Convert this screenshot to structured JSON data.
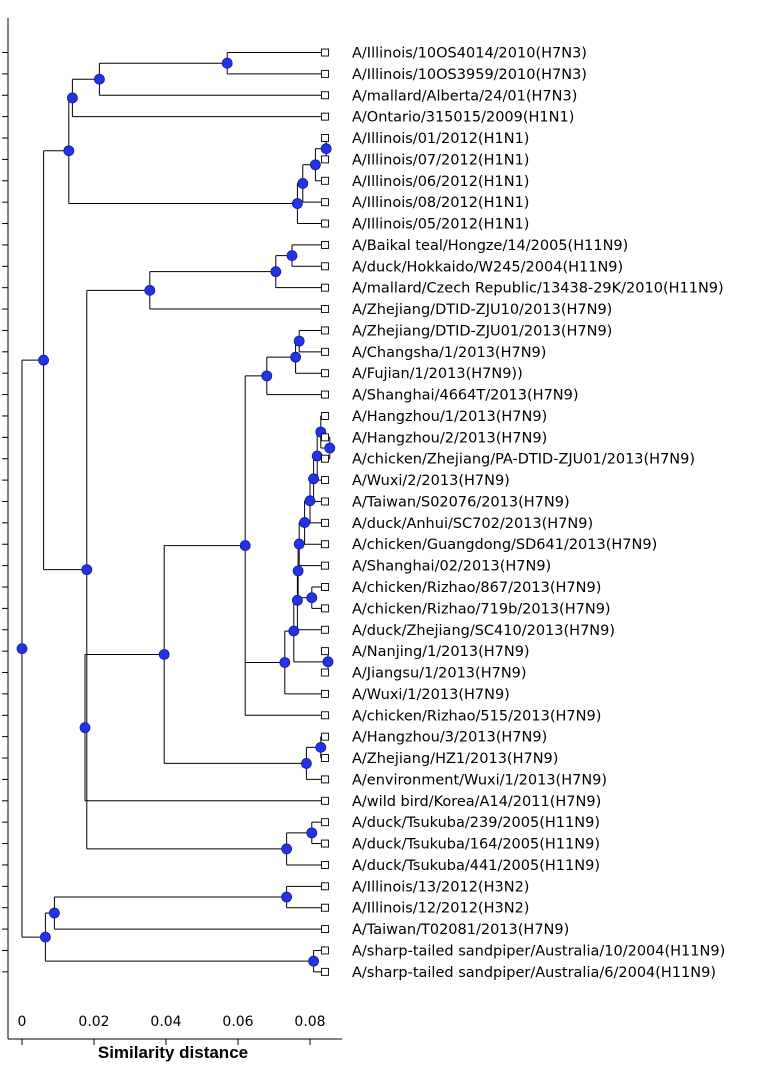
{
  "xaxis": {
    "title": "Similarity distance",
    "range": [
      -0.003,
      0.09
    ],
    "ticks": [
      {
        "value": 0,
        "label": "0"
      },
      {
        "value": 0.02,
        "label": "0.02"
      },
      {
        "value": 0.04,
        "label": "0.04"
      },
      {
        "value": 0.06,
        "label": "0.06"
      },
      {
        "value": 0.08,
        "label": "0.08"
      }
    ]
  },
  "colors": {
    "node": "#2233ee",
    "line": "#000000"
  },
  "tree": {
    "x": 0,
    "c": [
      {
        "x": 0.006,
        "c": [
          {
            "x": 0.013,
            "c": [
              {
                "x": 0.014,
                "c": [
                  {
                    "x": 0.0215,
                    "c": [
                      {
                        "x": 0.057,
                        "c": [
                          {
                            "leaf": "A/Illinois/10OS4014/2010(H7N3)"
                          },
                          {
                            "leaf": "A/Illinois/10OS3959/2010(H7N3)"
                          }
                        ]
                      },
                      {
                        "leaf": "A/mallard/Alberta/24/01(H7N3)"
                      }
                    ]
                  },
                  {
                    "leaf": "A/Ontario/315015/2009(H1N1)"
                  }
                ]
              },
              {
                "x": 0.0765,
                "c": [
                  {
                    "x": 0.078,
                    "c": [
                      {
                        "x": 0.0815,
                        "c": [
                          {
                            "x": 0.0845,
                            "c": [
                              {
                                "leaf": "A/Illinois/01/2012(H1N1)"
                              },
                              {
                                "leaf": "A/Illinois/07/2012(H1N1)"
                              }
                            ]
                          },
                          {
                            "leaf": "A/Illinois/06/2012(H1N1)"
                          }
                        ]
                      },
                      {
                        "leaf": "A/Illinois/08/2012(H1N1)"
                      }
                    ]
                  },
                  {
                    "leaf": "A/Illinois/05/2012(H1N1)"
                  }
                ]
              }
            ]
          },
          {
            "x": 0.018,
            "c": [
              {
                "x": 0.0355,
                "c": [
                  {
                    "x": 0.0705,
                    "c": [
                      {
                        "x": 0.075,
                        "c": [
                          {
                            "leaf": "A/Baikal teal/Hongze/14/2005(H11N9)"
                          },
                          {
                            "leaf": "A/duck/Hokkaido/W245/2004(H11N9)"
                          }
                        ]
                      },
                      {
                        "leaf": "A/mallard/Czech Republic/13438-29K/2010(H11N9)"
                      }
                    ]
                  },
                  {
                    "leaf": "A/Zhejiang/DTID-ZJU10/2013(H7N9)"
                  }
                ]
              },
              {
                "x": 0.0175,
                "c": [
                  {
                    "x": 0.0395,
                    "c": [
                      {
                        "x": 0.062,
                        "c": [
                          {
                            "x": 0.068,
                            "c": [
                              {
                                "x": 0.076,
                                "c": [
                                  {
                                    "x": 0.077,
                                    "c": [
                                      {
                                        "leaf": "A/Zhejiang/DTID-ZJU01/2013(H7N9)"
                                      },
                                      {
                                        "leaf": "A/Changsha/1/2013(H7N9)"
                                      }
                                    ]
                                  },
                                  {
                                    "leaf": "A/Fujian/1/2013(H7N9))"
                                  }
                                ]
                              },
                              {
                                "leaf": "A/Shanghai/4664T/2013(H7N9)"
                              }
                            ]
                          },
                          {
                            "x": 0.073,
                            "c": [
                              {
                                "x": 0.0755,
                                "c": [
                                  {
                                    "x": 0.0765,
                                    "c": [
                                      {
                                        "x": 0.0767,
                                        "c": [
                                          {
                                            "x": 0.077,
                                            "c": [
                                              {
                                                "x": 0.0785,
                                                "c": [
                                                  {
                                                    "x": 0.08,
                                                    "c": [
                                                      {
                                                        "x": 0.081,
                                                        "c": [
                                                          {
                                                            "x": 0.082,
                                                            "c": [
                                                              {
                                                                "x": 0.083,
                                                                "c": [
                                                                  {
                                                                    "leaf": "A/Hangzhou/1/2013(H7N9)"
                                                                  },
                                                                  {
                                                                    "x": 0.0855,
                                                                    "c": [
                                                                      {
                                                                        "leaf": "A/Hangzhou/2/2013(H7N9)"
                                                                      },
                                                                      {
                                                                        "leaf": "A/chicken/Zhejiang/PA-DTID-ZJU01/2013(H7N9)"
                                                                      }
                                                                    ]
                                                                  }
                                                                ]
                                                              },
                                                              {
                                                                "leaf": "A/Wuxi/2/2013(H7N9)"
                                                              }
                                                            ]
                                                          },
                                                          {
                                                            "leaf": "A/Taiwan/S02076/2013(H7N9)"
                                                          }
                                                        ]
                                                      },
                                                      {
                                                        "leaf": "A/duck/Anhui/SC702/2013(H7N9)"
                                                      }
                                                    ]
                                                  },
                                                  {
                                                    "leaf": "A/chicken/Guangdong/SD641/2013(H7N9)"
                                                  }
                                                ]
                                              },
                                              {
                                                "leaf": "A/Shanghai/02/2013(H7N9)"
                                              }
                                            ]
                                          },
                                          {
                                            "x": 0.0805,
                                            "c": [
                                              {
                                                "leaf": "A/chicken/Rizhao/867/2013(H7N9)"
                                              },
                                              {
                                                "leaf": "A/chicken/Rizhao/719b/2013(H7N9)"
                                              }
                                            ]
                                          }
                                        ]
                                      },
                                      {
                                        "leaf": "A/duck/Zhejiang/SC410/2013(H7N9)"
                                      }
                                    ]
                                  },
                                  {
                                    "x": 0.085,
                                    "c": [
                                      {
                                        "leaf": "A/Nanjing/1/2013(H7N9)"
                                      },
                                      {
                                        "leaf": "A/Jiangsu/1/2013(H7N9)"
                                      }
                                    ]
                                  }
                                ]
                              },
                              {
                                "leaf": "A/Wuxi/1/2013(H7N9)"
                              }
                            ]
                          },
                          {
                            "leaf": "A/chicken/Rizhao/515/2013(H7N9)"
                          }
                        ]
                      },
                      {
                        "x": 0.079,
                        "c": [
                          {
                            "x": 0.083,
                            "c": [
                              {
                                "leaf": "A/Hangzhou/3/2013(H7N9)"
                              },
                              {
                                "leaf": "A/Zhejiang/HZ1/2013(H7N9)"
                              }
                            ]
                          },
                          {
                            "leaf": "A/environment/Wuxi/1/2013(H7N9)"
                          }
                        ]
                      }
                    ]
                  },
                  {
                    "leaf": "A/wild bird/Korea/A14/2011(H7N9)"
                  }
                ]
              },
              {
                "x": 0.0735,
                "c": [
                  {
                    "x": 0.0805,
                    "c": [
                      {
                        "leaf": "A/duck/Tsukuba/239/2005(H11N9)"
                      },
                      {
                        "leaf": "A/duck/Tsukuba/164/2005(H11N9)"
                      }
                    ]
                  },
                  {
                    "leaf": "A/duck/Tsukuba/441/2005(H11N9)"
                  }
                ]
              }
            ]
          }
        ]
      },
      {
        "x": 0.0065,
        "c": [
          {
            "x": 0.009,
            "c": [
              {
                "x": 0.0735,
                "c": [
                  {
                    "leaf": "A/Illinois/13/2012(H3N2)"
                  },
                  {
                    "leaf": "A/Illinois/12/2012(H3N2)"
                  }
                ]
              },
              {
                "leaf": "A/Taiwan/T02081/2013(H7N9)"
              }
            ]
          },
          {
            "x": 0.081,
            "c": [
              {
                "leaf": "A/sharp-tailed sandpiper/Australia/10/2004(H11N9)"
              },
              {
                "leaf": "A/sharp-tailed sandpiper/Australia/6/2004(H11N9)"
              }
            ]
          }
        ]
      }
    ]
  }
}
